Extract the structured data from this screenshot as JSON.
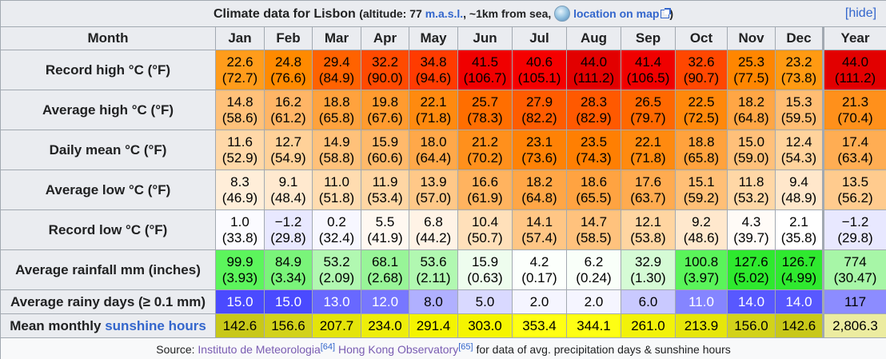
{
  "caption": {
    "title": "Climate data for Lisbon",
    "prefix": "(altitude: 77 ",
    "masl": "m.a.s.l.",
    "middle": ", ~1km from sea, ",
    "map_link": "location on map",
    "suffix": ")",
    "hide": "[hide]"
  },
  "header": {
    "label": "Month",
    "months": [
      "Jan",
      "Feb",
      "Mar",
      "Apr",
      "May",
      "Jun",
      "Jul",
      "Aug",
      "Sep",
      "Oct",
      "Nov",
      "Dec"
    ],
    "year": "Year"
  },
  "rows": [
    {
      "label": "Record high °C (°F)",
      "cells": [
        {
          "v": "22.6",
          "s": "(72.7)",
          "c": "#ff9c1b"
        },
        {
          "v": "24.8",
          "s": "(76.6)",
          "c": "#ff8a00"
        },
        {
          "v": "29.4",
          "s": "(84.9)",
          "c": "#ff6200"
        },
        {
          "v": "32.2",
          "s": "(90.0)",
          "c": "#ff4a00"
        },
        {
          "v": "34.8",
          "s": "(94.6)",
          "c": "#ff3b00"
        },
        {
          "v": "41.5",
          "s": "(106.7)",
          "c": "#f00000"
        },
        {
          "v": "40.6",
          "s": "(105.1)",
          "c": "#f50000"
        },
        {
          "v": "44.0",
          "s": "(111.2)",
          "c": "#e20000"
        },
        {
          "v": "41.4",
          "s": "(106.5)",
          "c": "#f00000"
        },
        {
          "v": "32.6",
          "s": "(90.7)",
          "c": "#ff4700"
        },
        {
          "v": "25.3",
          "s": "(77.5)",
          "c": "#ff8600"
        },
        {
          "v": "23.2",
          "s": "(73.8)",
          "c": "#ff9a12"
        },
        {
          "v": "44.0",
          "s": "(111.2)",
          "c": "#e20000"
        }
      ]
    },
    {
      "label": "Average high °C (°F)",
      "cells": [
        {
          "v": "14.8",
          "s": "(58.6)",
          "c": "#ffc17a"
        },
        {
          "v": "16.2",
          "s": "(61.2)",
          "c": "#ffb566"
        },
        {
          "v": "18.8",
          "s": "(65.8)",
          "c": "#ffa23d"
        },
        {
          "v": "19.8",
          "s": "(67.6)",
          "c": "#ff9b2f"
        },
        {
          "v": "22.1",
          "s": "(71.8)",
          "c": "#ff8a0f"
        },
        {
          "v": "25.7",
          "s": "(78.3)",
          "c": "#ff6e00"
        },
        {
          "v": "27.9",
          "s": "(82.2)",
          "c": "#ff5c00"
        },
        {
          "v": "28.3",
          "s": "(82.9)",
          "c": "#ff5900"
        },
        {
          "v": "26.5",
          "s": "(79.7)",
          "c": "#ff6800"
        },
        {
          "v": "22.5",
          "s": "(72.5)",
          "c": "#ff880b"
        },
        {
          "v": "18.2",
          "s": "(64.8)",
          "c": "#ffa645"
        },
        {
          "v": "15.3",
          "s": "(59.5)",
          "c": "#ffbd73"
        },
        {
          "v": "21.3",
          "s": "(70.4)",
          "c": "#ff901b"
        }
      ]
    },
    {
      "label": "Daily mean °C (°F)",
      "cells": [
        {
          "v": "11.6",
          "s": "(52.9)",
          "c": "#ffd8a8"
        },
        {
          "v": "12.7",
          "s": "(54.9)",
          "c": "#ffd199"
        },
        {
          "v": "14.9",
          "s": "(58.8)",
          "c": "#ffc17a"
        },
        {
          "v": "15.9",
          "s": "(60.6)",
          "c": "#ffb96b"
        },
        {
          "v": "18.0",
          "s": "(64.4)",
          "c": "#ffa849"
        },
        {
          "v": "21.2",
          "s": "(70.2)",
          "c": "#ff901c"
        },
        {
          "v": "23.1",
          "s": "(73.6)",
          "c": "#ff8205"
        },
        {
          "v": "23.5",
          "s": "(74.3)",
          "c": "#ff7f02"
        },
        {
          "v": "22.1",
          "s": "(71.8)",
          "c": "#ff8a0f"
        },
        {
          "v": "18.8",
          "s": "(65.8)",
          "c": "#ffa23d"
        },
        {
          "v": "15.0",
          "s": "(59.0)",
          "c": "#ffc07a"
        },
        {
          "v": "12.4",
          "s": "(54.3)",
          "c": "#ffd39c"
        },
        {
          "v": "17.4",
          "s": "(63.4)",
          "c": "#ffad53"
        }
      ]
    },
    {
      "label": "Average low °C (°F)",
      "cells": [
        {
          "v": "8.3",
          "s": "(46.9)",
          "c": "#ffeed9"
        },
        {
          "v": "9.1",
          "s": "(48.4)",
          "c": "#ffe9cf"
        },
        {
          "v": "11.0",
          "s": "(51.8)",
          "c": "#ffdcb0"
        },
        {
          "v": "11.9",
          "s": "(53.4)",
          "c": "#ffd6a4"
        },
        {
          "v": "13.9",
          "s": "(57.0)",
          "c": "#ffc888"
        },
        {
          "v": "16.6",
          "s": "(61.9)",
          "c": "#ffb35f"
        },
        {
          "v": "18.2",
          "s": "(64.8)",
          "c": "#ffa646"
        },
        {
          "v": "18.6",
          "s": "(65.5)",
          "c": "#ffa341"
        },
        {
          "v": "17.6",
          "s": "(63.7)",
          "c": "#ffab50"
        },
        {
          "v": "15.1",
          "s": "(59.2)",
          "c": "#ffbf76"
        },
        {
          "v": "11.8",
          "s": "(53.2)",
          "c": "#ffd7a6"
        },
        {
          "v": "9.4",
          "s": "(48.9)",
          "c": "#ffe7cb"
        },
        {
          "v": "13.5",
          "s": "(56.2)",
          "c": "#ffcb8e"
        }
      ]
    },
    {
      "label": "Record low °C (°F)",
      "cells": [
        {
          "v": "1.0",
          "s": "(33.8)",
          "c": "#fbfbff"
        },
        {
          "v": "−1.2",
          "s": "(29.8)",
          "c": "#e8e8ff"
        },
        {
          "v": "0.2",
          "s": "(32.4)",
          "c": "#f7f7ff"
        },
        {
          "v": "5.5",
          "s": "(41.9)",
          "c": "#fff8f1"
        },
        {
          "v": "6.8",
          "s": "(44.2)",
          "c": "#fff3e6"
        },
        {
          "v": "10.4",
          "s": "(50.7)",
          "c": "#ffe0ba"
        },
        {
          "v": "14.1",
          "s": "(57.4)",
          "c": "#ffc685"
        },
        {
          "v": "14.7",
          "s": "(58.5)",
          "c": "#ffc27d"
        },
        {
          "v": "12.1",
          "s": "(53.8)",
          "c": "#ffd5a1"
        },
        {
          "v": "9.2",
          "s": "(48.6)",
          "c": "#ffe8cd"
        },
        {
          "v": "4.3",
          "s": "(39.7)",
          "c": "#fffbf7"
        },
        {
          "v": "2.1",
          "s": "(35.8)",
          "c": "#ffffff"
        },
        {
          "v": "−1.2",
          "s": "(29.8)",
          "c": "#e8e8ff"
        }
      ]
    },
    {
      "label": "Average rainfall mm (inches)",
      "cells": [
        {
          "v": "99.9",
          "s": "(3.93)",
          "c": "#5cf55c"
        },
        {
          "v": "84.9",
          "s": "(3.34)",
          "c": "#7af47a"
        },
        {
          "v": "53.2",
          "s": "(2.09)",
          "c": "#b1f8b1"
        },
        {
          "v": "68.1",
          "s": "(2.68)",
          "c": "#98f598"
        },
        {
          "v": "53.6",
          "s": "(2.11)",
          "c": "#b1f8b1"
        },
        {
          "v": "15.9",
          "s": "(0.63)",
          "c": "#eefdee"
        },
        {
          "v": "4.2",
          "s": "(0.17)",
          "c": "#fcfffc"
        },
        {
          "v": "6.2",
          "s": "(0.24)",
          "c": "#f9fff9"
        },
        {
          "v": "32.9",
          "s": "(1.30)",
          "c": "#d5fbd5"
        },
        {
          "v": "100.8",
          "s": "(3.97)",
          "c": "#5af45a"
        },
        {
          "v": "127.6",
          "s": "(5.02)",
          "c": "#2ee92e"
        },
        {
          "v": "126.7",
          "s": "(4.99)",
          "c": "#2fe92f"
        },
        {
          "v": "774",
          "s": "(30.47)",
          "c": "#a7f6a7"
        }
      ]
    }
  ],
  "rainy_days": {
    "label": "Average rainy days (≥ 0.1 mm)",
    "cells": [
      {
        "v": "15.0",
        "c": "#4a4aff",
        "t": "#ffffff"
      },
      {
        "v": "15.0",
        "c": "#4a4aff",
        "t": "#ffffff"
      },
      {
        "v": "13.0",
        "c": "#6868ff",
        "t": "#ffffff"
      },
      {
        "v": "12.0",
        "c": "#7777ff",
        "t": "#ffffff"
      },
      {
        "v": "8.0",
        "c": "#b0b0ff",
        "t": "#000000"
      },
      {
        "v": "5.0",
        "c": "#d9d9ff",
        "t": "#000000"
      },
      {
        "v": "2.0",
        "c": "#f5f5ff",
        "t": "#000000"
      },
      {
        "v": "2.0",
        "c": "#f5f5ff",
        "t": "#000000"
      },
      {
        "v": "6.0",
        "c": "#c9c9ff",
        "t": "#000000"
      },
      {
        "v": "11.0",
        "c": "#8585ff",
        "t": "#ffffff"
      },
      {
        "v": "14.0",
        "c": "#5858ff",
        "t": "#ffffff"
      },
      {
        "v": "14.0",
        "c": "#5858ff",
        "t": "#ffffff"
      },
      {
        "v": "117",
        "c": "#8c8cff",
        "t": "#000000"
      }
    ]
  },
  "sunshine": {
    "label_prefix": "Mean monthly ",
    "label_link": "sunshine hours",
    "cells": [
      {
        "v": "142.6",
        "c": "#c8c819"
      },
      {
        "v": "156.6",
        "c": "#d2d21b"
      },
      {
        "v": "207.7",
        "c": "#e4e40a"
      },
      {
        "v": "234.0",
        "c": "#eeee0a"
      },
      {
        "v": "291.4",
        "c": "#f4f400"
      },
      {
        "v": "303.0",
        "c": "#f5f500"
      },
      {
        "v": "353.4",
        "c": "#ffff14"
      },
      {
        "v": "344.1",
        "c": "#fefe14"
      },
      {
        "v": "261.0",
        "c": "#f2f20a"
      },
      {
        "v": "213.9",
        "c": "#e6e60a"
      },
      {
        "v": "156.0",
        "c": "#d2d21b"
      },
      {
        "v": "142.6",
        "c": "#c8c819"
      },
      {
        "v": "2,806.3",
        "c": "#ececa0"
      }
    ]
  },
  "source": {
    "prefix": "Source: ",
    "link1": "Instituto de Meteorologia",
    "ref1": "[64]",
    "sep": " ",
    "link2": "Hong Kong Observatory",
    "ref2": "[65]",
    "note": " for data of avg. precipitation days & sunshine hours"
  },
  "colors": {
    "header_bg": "#eaecf0",
    "link": "#3366cc",
    "visited_link": "#795cb2",
    "border": "#a2a9b1"
  }
}
